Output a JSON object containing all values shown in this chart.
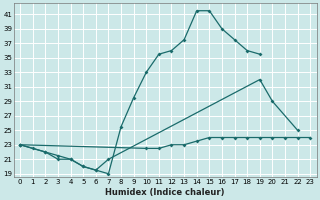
{
  "xlabel": "Humidex (Indice chaleur)",
  "bg_color": "#cce8e8",
  "grid_color": "#ffffff",
  "line_color": "#1a6b6b",
  "xlim": [
    -0.5,
    23.5
  ],
  "ylim": [
    18.5,
    42.5
  ],
  "xticks": [
    0,
    1,
    2,
    3,
    4,
    5,
    6,
    7,
    8,
    9,
    10,
    11,
    12,
    13,
    14,
    15,
    16,
    17,
    18,
    19,
    20,
    21,
    22,
    23
  ],
  "yticks": [
    19,
    21,
    23,
    25,
    27,
    29,
    31,
    33,
    35,
    37,
    39,
    41
  ],
  "line1_x": [
    0,
    1,
    2,
    3,
    4,
    5,
    6,
    7,
    8,
    9,
    10,
    11,
    12,
    13,
    14,
    15,
    16,
    17,
    18,
    19
  ],
  "line1_y": [
    23,
    22.5,
    22,
    21.5,
    21,
    20,
    19.5,
    19,
    25.5,
    29.5,
    33,
    35.5,
    36,
    37.5,
    41.5,
    41.5,
    39,
    37.5,
    36,
    35.5
  ],
  "line2_x": [
    0,
    2,
    3,
    4,
    5,
    6,
    7,
    19,
    20,
    22
  ],
  "line2_y": [
    23,
    22,
    21,
    21,
    20,
    19.5,
    21,
    32,
    29,
    25
  ],
  "line3_x": [
    0,
    10,
    11,
    12,
    13,
    14,
    15,
    16,
    17,
    18,
    19,
    20,
    21,
    22,
    23
  ],
  "line3_y": [
    23,
    22.5,
    22.5,
    23,
    23,
    23.5,
    24,
    24,
    24,
    24,
    24,
    24,
    24,
    24,
    24
  ],
  "xlabel_fontsize": 6.0,
  "tick_fontsize": 5.0
}
